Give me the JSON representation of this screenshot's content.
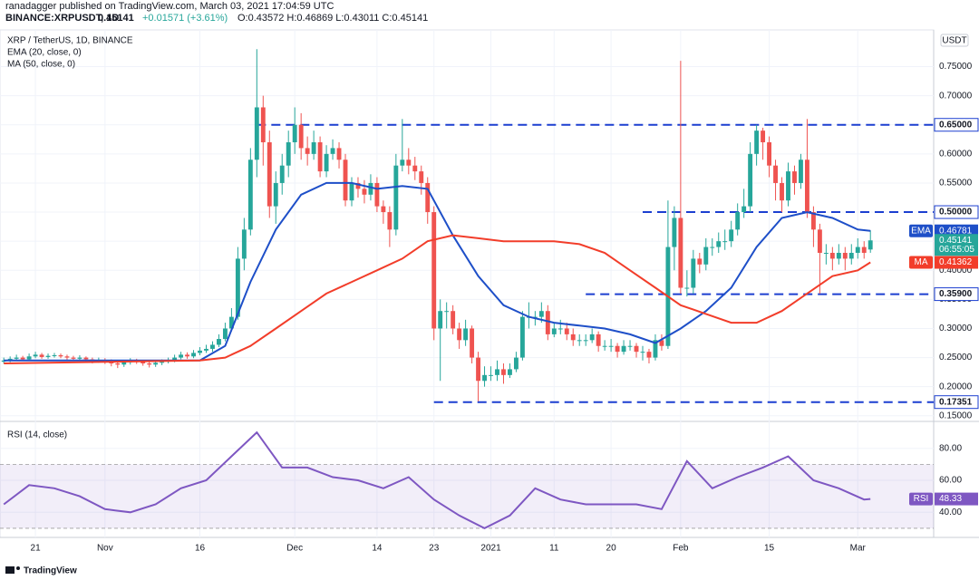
{
  "chart_data": {
    "type": "candlestick",
    "header": {
      "publisher": "ranadagger published on TradingView.com, March 03, 2021 17:04:59 UTC",
      "symbol": "BINANCE:XRPUSDT, 1D",
      "last_price": "0.45141",
      "change": "+0.01571 (+3.61%)",
      "ohlc": "O:0.43572 H:0.46869 L:0.43011 C:0.45141"
    },
    "legend": [
      "XRP / TetherUS, 1D, BINANCE",
      "EMA (20, close, 0)",
      "MA (50, close, 0)"
    ],
    "currency": "USDT",
    "brand": "TradingView",
    "up_color": "#26a69a",
    "down_color": "#ef5350",
    "grid": true,
    "xlim": [
      -0.6,
      147
    ],
    "xticks": [
      {
        "value": 5,
        "label": "21"
      },
      {
        "value": 16,
        "label": "Nov"
      },
      {
        "value": 31,
        "label": "16"
      },
      {
        "value": 46,
        "label": "Dec"
      },
      {
        "value": 59,
        "label": "14"
      },
      {
        "value": 68,
        "label": "23"
      },
      {
        "value": 77,
        "label": "2021"
      },
      {
        "value": 87,
        "label": "11"
      },
      {
        "value": 96,
        "label": "20"
      },
      {
        "value": 107,
        "label": "Feb"
      },
      {
        "value": 121,
        "label": "15"
      },
      {
        "value": 135,
        "label": "Mar"
      }
    ],
    "ylim": [
      0.145,
      0.81
    ],
    "yticks": [
      {
        "value": 0.15,
        "label": "0.15000"
      },
      {
        "value": 0.2,
        "label": "0.20000"
      },
      {
        "value": 0.25,
        "label": "0.25000"
      },
      {
        "value": 0.3,
        "label": "0.30000"
      },
      {
        "value": 0.35,
        "label": "0.35000"
      },
      {
        "value": 0.4,
        "label": "0.40000"
      },
      {
        "value": 0.45,
        "label": "0.45000"
      },
      {
        "value": 0.5,
        "label": "0.50000"
      },
      {
        "value": 0.55,
        "label": "0.55000"
      },
      {
        "value": 0.6,
        "label": "0.60000"
      },
      {
        "value": 0.65,
        "label": "0.65000"
      },
      {
        "value": 0.7,
        "label": "0.70000"
      },
      {
        "value": 0.75,
        "label": "0.75000"
      }
    ],
    "candles": {
      "open": [
        0.243,
        0.245,
        0.248,
        0.25,
        0.247,
        0.252,
        0.255,
        0.251,
        0.253,
        0.254,
        0.252,
        0.25,
        0.248,
        0.25,
        0.247,
        0.245,
        0.246,
        0.244,
        0.24,
        0.238,
        0.242,
        0.245,
        0.243,
        0.24,
        0.238,
        0.241,
        0.243,
        0.246,
        0.25,
        0.255,
        0.252,
        0.258,
        0.262,
        0.265,
        0.272,
        0.282,
        0.3,
        0.32,
        0.42,
        0.47,
        0.59,
        0.68,
        0.62,
        0.51,
        0.55,
        0.58,
        0.62,
        0.65,
        0.61,
        0.6,
        0.62,
        0.57,
        0.6,
        0.61,
        0.59,
        0.52,
        0.55,
        0.54,
        0.53,
        0.55,
        0.51,
        0.5,
        0.47,
        0.58,
        0.59,
        0.58,
        0.57,
        0.55,
        0.5,
        0.3,
        0.33,
        0.33,
        0.3,
        0.28,
        0.3,
        0.25,
        0.21,
        0.22,
        0.22,
        0.23,
        0.22,
        0.23,
        0.25,
        0.32,
        0.32,
        0.32,
        0.33,
        0.29,
        0.3,
        0.3,
        0.29,
        0.28,
        0.28,
        0.28,
        0.29,
        0.27,
        0.27,
        0.27,
        0.26,
        0.27,
        0.27,
        0.26,
        0.26,
        0.25,
        0.28,
        0.27,
        0.44,
        0.49,
        0.37,
        0.37,
        0.42,
        0.41,
        0.44,
        0.44,
        0.45,
        0.45,
        0.47,
        0.5,
        0.51,
        0.6,
        0.64,
        0.62,
        0.58,
        0.55,
        0.52,
        0.57,
        0.55,
        0.59,
        0.5,
        0.47,
        0.43,
        0.43,
        0.42,
        0.43,
        0.42,
        0.43,
        0.44,
        0.43572
      ],
      "high": [
        0.25,
        0.252,
        0.255,
        0.253,
        0.257,
        0.26,
        0.258,
        0.257,
        0.258,
        0.257,
        0.255,
        0.253,
        0.254,
        0.252,
        0.25,
        0.25,
        0.249,
        0.247,
        0.244,
        0.246,
        0.249,
        0.248,
        0.246,
        0.243,
        0.245,
        0.247,
        0.25,
        0.255,
        0.26,
        0.259,
        0.263,
        0.268,
        0.272,
        0.278,
        0.29,
        0.31,
        0.335,
        0.44,
        0.49,
        0.61,
        0.78,
        0.7,
        0.64,
        0.57,
        0.6,
        0.64,
        0.68,
        0.67,
        0.63,
        0.64,
        0.63,
        0.615,
        0.625,
        0.62,
        0.6,
        0.56,
        0.56,
        0.555,
        0.565,
        0.56,
        0.52,
        0.51,
        0.6,
        0.66,
        0.61,
        0.595,
        0.58,
        0.56,
        0.51,
        0.35,
        0.345,
        0.34,
        0.31,
        0.315,
        0.305,
        0.26,
        0.235,
        0.235,
        0.245,
        0.24,
        0.24,
        0.26,
        0.33,
        0.345,
        0.33,
        0.345,
        0.34,
        0.31,
        0.315,
        0.31,
        0.3,
        0.29,
        0.29,
        0.3,
        0.295,
        0.28,
        0.282,
        0.275,
        0.28,
        0.28,
        0.275,
        0.27,
        0.265,
        0.29,
        0.29,
        0.52,
        0.51,
        0.76,
        0.4,
        0.435,
        0.43,
        0.455,
        0.455,
        0.465,
        0.47,
        0.485,
        0.515,
        0.54,
        0.62,
        0.65,
        0.645,
        0.63,
        0.59,
        0.56,
        0.585,
        0.58,
        0.6,
        0.66,
        0.51,
        0.48,
        0.445,
        0.44,
        0.445,
        0.44,
        0.445,
        0.455,
        0.45,
        0.46869
      ],
      "low": [
        0.24,
        0.242,
        0.245,
        0.244,
        0.245,
        0.249,
        0.248,
        0.248,
        0.25,
        0.249,
        0.246,
        0.244,
        0.245,
        0.243,
        0.24,
        0.241,
        0.239,
        0.235,
        0.232,
        0.234,
        0.238,
        0.239,
        0.236,
        0.233,
        0.234,
        0.237,
        0.24,
        0.242,
        0.247,
        0.248,
        0.249,
        0.254,
        0.258,
        0.26,
        0.268,
        0.278,
        0.295,
        0.315,
        0.4,
        0.46,
        0.56,
        0.58,
        0.49,
        0.48,
        0.53,
        0.56,
        0.6,
        0.59,
        0.58,
        0.59,
        0.56,
        0.56,
        0.59,
        0.575,
        0.51,
        0.51,
        0.525,
        0.515,
        0.52,
        0.5,
        0.48,
        0.44,
        0.46,
        0.57,
        0.565,
        0.555,
        0.53,
        0.48,
        0.28,
        0.21,
        0.3,
        0.29,
        0.265,
        0.27,
        0.24,
        0.175,
        0.2,
        0.21,
        0.21,
        0.205,
        0.215,
        0.225,
        0.245,
        0.3,
        0.305,
        0.31,
        0.28,
        0.285,
        0.29,
        0.28,
        0.27,
        0.27,
        0.27,
        0.275,
        0.26,
        0.262,
        0.26,
        0.25,
        0.255,
        0.262,
        0.25,
        0.245,
        0.24,
        0.245,
        0.262,
        0.265,
        0.4,
        0.36,
        0.355,
        0.36,
        0.395,
        0.4,
        0.425,
        0.43,
        0.435,
        0.44,
        0.46,
        0.49,
        0.5,
        0.58,
        0.59,
        0.56,
        0.52,
        0.5,
        0.51,
        0.53,
        0.54,
        0.49,
        0.44,
        0.36,
        0.41,
        0.4,
        0.41,
        0.4,
        0.41,
        0.42,
        0.42,
        0.43011
      ],
      "close": [
        0.245,
        0.248,
        0.25,
        0.247,
        0.252,
        0.255,
        0.251,
        0.253,
        0.254,
        0.252,
        0.25,
        0.248,
        0.25,
        0.247,
        0.245,
        0.246,
        0.244,
        0.24,
        0.238,
        0.242,
        0.245,
        0.243,
        0.24,
        0.238,
        0.241,
        0.243,
        0.246,
        0.25,
        0.255,
        0.252,
        0.258,
        0.262,
        0.265,
        0.272,
        0.282,
        0.3,
        0.32,
        0.42,
        0.47,
        0.59,
        0.68,
        0.62,
        0.51,
        0.55,
        0.58,
        0.62,
        0.65,
        0.61,
        0.6,
        0.62,
        0.57,
        0.6,
        0.61,
        0.59,
        0.52,
        0.55,
        0.54,
        0.53,
        0.55,
        0.51,
        0.5,
        0.47,
        0.58,
        0.59,
        0.58,
        0.57,
        0.55,
        0.5,
        0.3,
        0.33,
        0.33,
        0.3,
        0.28,
        0.3,
        0.25,
        0.21,
        0.22,
        0.22,
        0.23,
        0.22,
        0.23,
        0.25,
        0.32,
        0.32,
        0.32,
        0.33,
        0.29,
        0.3,
        0.3,
        0.29,
        0.28,
        0.28,
        0.28,
        0.29,
        0.27,
        0.27,
        0.27,
        0.26,
        0.27,
        0.27,
        0.26,
        0.26,
        0.25,
        0.28,
        0.27,
        0.44,
        0.49,
        0.37,
        0.37,
        0.42,
        0.41,
        0.44,
        0.44,
        0.45,
        0.45,
        0.47,
        0.5,
        0.51,
        0.6,
        0.64,
        0.62,
        0.58,
        0.55,
        0.52,
        0.57,
        0.55,
        0.59,
        0.5,
        0.47,
        0.43,
        0.43,
        0.42,
        0.43,
        0.42,
        0.43,
        0.44,
        0.43,
        0.45141
      ]
    },
    "ema": {
      "name": "EMA",
      "color": "#1e4fc8",
      "x": [
        0,
        31,
        35,
        39,
        43,
        47,
        51,
        55,
        59,
        63,
        67,
        71,
        75,
        79,
        83,
        87,
        91,
        95,
        99,
        103,
        107,
        111,
        115,
        119,
        123,
        127,
        131,
        135,
        137
      ],
      "values": [
        0.245,
        0.245,
        0.27,
        0.38,
        0.47,
        0.53,
        0.55,
        0.55,
        0.54,
        0.545,
        0.54,
        0.46,
        0.39,
        0.34,
        0.32,
        0.31,
        0.305,
        0.3,
        0.29,
        0.275,
        0.3,
        0.33,
        0.37,
        0.44,
        0.49,
        0.5,
        0.49,
        0.47,
        0.46781
      ],
      "value_label": "0.46781"
    },
    "ma": {
      "name": "MA",
      "color": "#f23d2a",
      "x": [
        0,
        31,
        35,
        39,
        43,
        47,
        51,
        55,
        59,
        63,
        67,
        71,
        75,
        79,
        83,
        87,
        91,
        95,
        99,
        103,
        107,
        111,
        115,
        119,
        123,
        127,
        131,
        135,
        137
      ],
      "values": [
        0.24,
        0.245,
        0.25,
        0.27,
        0.3,
        0.33,
        0.36,
        0.38,
        0.4,
        0.42,
        0.45,
        0.46,
        0.455,
        0.45,
        0.45,
        0.45,
        0.445,
        0.43,
        0.4,
        0.37,
        0.34,
        0.325,
        0.31,
        0.31,
        0.33,
        0.36,
        0.39,
        0.4,
        0.41362
      ],
      "value_label": "0.41362"
    },
    "last": {
      "value": 0.45141,
      "label": "0.45141",
      "countdown": "06:55:05"
    },
    "levels": [
      {
        "value": 0.65,
        "label": "0.65000",
        "start": 40
      },
      {
        "value": 0.5,
        "label": "0.50000",
        "start": 101
      },
      {
        "value": 0.359,
        "label": "0.35900",
        "start": 92
      },
      {
        "value": 0.17351,
        "label": "0.17351",
        "start": 68
      }
    ],
    "level_color": "#1c3fd0",
    "rsi": {
      "title": "RSI (14, close)",
      "name": "RSI",
      "color": "#7e57c2",
      "ylim": [
        26,
        94
      ],
      "yticks": [
        {
          "value": 40,
          "label": "40.00"
        },
        {
          "value": 60,
          "label": "60.00"
        },
        {
          "value": 80,
          "label": "80.00"
        }
      ],
      "band": [
        30,
        70
      ],
      "x": [
        0,
        4,
        8,
        12,
        16,
        20,
        24,
        28,
        32,
        36,
        40,
        44,
        48,
        52,
        56,
        60,
        64,
        68,
        72,
        76,
        80,
        84,
        88,
        92,
        96,
        100,
        104,
        108,
        112,
        116,
        120,
        124,
        128,
        132,
        136,
        137
      ],
      "values": [
        45,
        57,
        55,
        50,
        42,
        40,
        45,
        55,
        60,
        75,
        90,
        68,
        68,
        62,
        60,
        55,
        62,
        48,
        38,
        30,
        38,
        55,
        48,
        45,
        45,
        45,
        42,
        72,
        55,
        62,
        68,
        75,
        60,
        55,
        48,
        48.33
      ],
      "value_label": "48.33"
    }
  }
}
